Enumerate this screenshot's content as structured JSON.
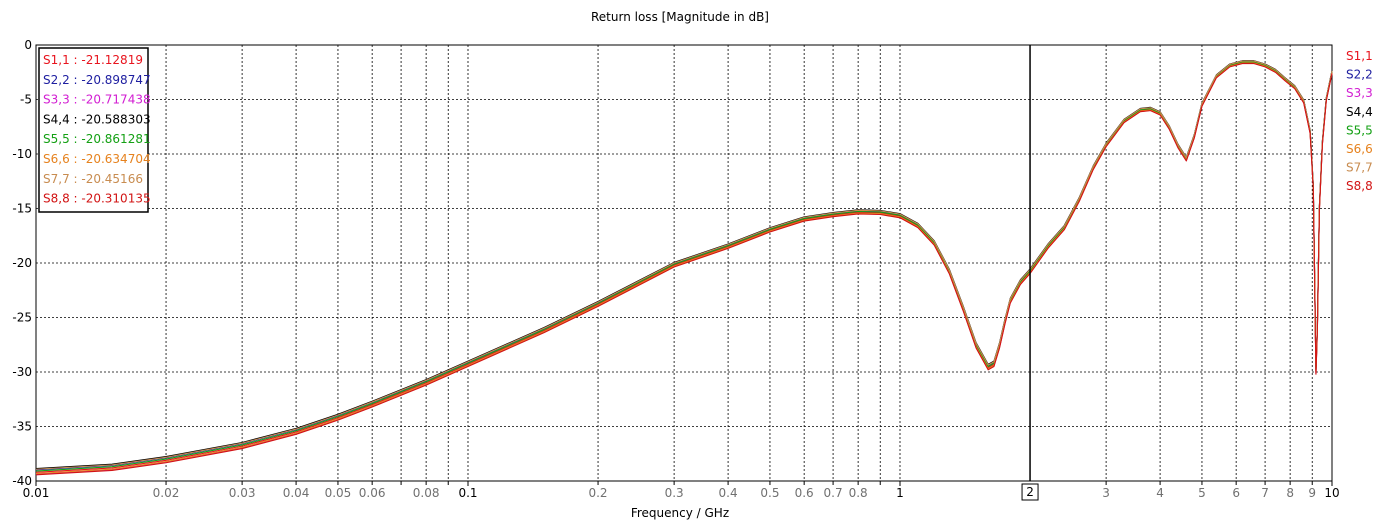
{
  "chart_data": {
    "type": "line",
    "title": "Return loss [Magnitude in dB]",
    "xlabel": "Frequency / GHz",
    "ylabel": "",
    "xscale": "log",
    "xlim": [
      0.01,
      10
    ],
    "ylim": [
      -40,
      0
    ],
    "grid": true,
    "x_ticks_major": [
      {
        "value": 0.01,
        "label": "0.01"
      },
      {
        "value": 0.1,
        "label": "0.1"
      },
      {
        "value": 1,
        "label": "1"
      },
      {
        "value": 10,
        "label": "10"
      }
    ],
    "x_ticks_minor": [
      {
        "value": 0.02,
        "label": "0.02"
      },
      {
        "value": 0.03,
        "label": "0.03"
      },
      {
        "value": 0.04,
        "label": "0.04"
      },
      {
        "value": 0.05,
        "label": "0.05"
      },
      {
        "value": 0.06,
        "label": "0.06"
      },
      {
        "value": 0.07,
        "label": ""
      },
      {
        "value": 0.08,
        "label": "0.08"
      },
      {
        "value": 0.09,
        "label": ""
      },
      {
        "value": 0.2,
        "label": "0.2"
      },
      {
        "value": 0.3,
        "label": "0.3"
      },
      {
        "value": 0.4,
        "label": "0.4"
      },
      {
        "value": 0.5,
        "label": "0.5"
      },
      {
        "value": 0.6,
        "label": "0.6"
      },
      {
        "value": 0.7,
        "label": "0.7"
      },
      {
        "value": 0.8,
        "label": "0.8"
      },
      {
        "value": 0.9,
        "label": ""
      },
      {
        "value": 3,
        "label": "3"
      },
      {
        "value": 4,
        "label": "4"
      },
      {
        "value": 5,
        "label": "5"
      },
      {
        "value": 6,
        "label": "6"
      },
      {
        "value": 7,
        "label": "7"
      },
      {
        "value": 8,
        "label": "8"
      },
      {
        "value": 9,
        "label": "9"
      }
    ],
    "y_ticks": [
      {
        "value": 0,
        "label": "0"
      },
      {
        "value": -5,
        "label": "-5"
      },
      {
        "value": -10,
        "label": "-10"
      },
      {
        "value": -15,
        "label": "-15"
      },
      {
        "value": -20,
        "label": "-20"
      },
      {
        "value": -25,
        "label": "-25"
      },
      {
        "value": -30,
        "label": "-30"
      },
      {
        "value": -35,
        "label": "-35"
      },
      {
        "value": -40,
        "label": "-40"
      }
    ],
    "marker": {
      "x": 2,
      "label": "2"
    },
    "legend_position": "top-left",
    "legend": [
      {
        "text": "S1,1 : -21.12819",
        "color": "#e8141e"
      },
      {
        "text": "S2,2 : -20.898747",
        "color": "#1e1ea0"
      },
      {
        "text": "S3,3 : -20.717438",
        "color": "#d21ed2"
      },
      {
        "text": "S4,4 : -20.588303",
        "color": "#000000"
      },
      {
        "text": "S5,5 : -20.861281",
        "color": "#14a014"
      },
      {
        "text": "S6,6 : -20.634704",
        "color": "#e6821e"
      },
      {
        "text": "S7,7 : -20.45166",
        "color": "#c88c50"
      },
      {
        "text": "S8,8 : -20.310135",
        "color": "#d21414"
      }
    ],
    "series_end_labels": [
      {
        "name": "S1,1",
        "color": "#e8141e"
      },
      {
        "name": "S2,2",
        "color": "#1e1ea0"
      },
      {
        "name": "S3,3",
        "color": "#d21ed2"
      },
      {
        "name": "S4,4",
        "color": "#000000"
      },
      {
        "name": "S5,5",
        "color": "#14a014"
      },
      {
        "name": "S6,6",
        "color": "#e6821e"
      },
      {
        "name": "S7,7",
        "color": "#c88c50"
      },
      {
        "name": "S8,8",
        "color": "#d21414"
      }
    ],
    "base_curve": {
      "x": [
        0.01,
        0.015,
        0.02,
        0.03,
        0.04,
        0.05,
        0.06,
        0.08,
        0.1,
        0.15,
        0.2,
        0.3,
        0.4,
        0.5,
        0.6,
        0.7,
        0.8,
        0.9,
        1.0,
        1.1,
        1.2,
        1.3,
        1.4,
        1.5,
        1.6,
        1.65,
        1.7,
        1.75,
        1.8,
        1.9,
        2.0,
        2.2,
        2.4,
        2.6,
        2.8,
        3.0,
        3.3,
        3.6,
        3.8,
        4.0,
        4.2,
        4.4,
        4.6,
        4.8,
        5.0,
        5.4,
        5.8,
        6.2,
        6.6,
        7.0,
        7.4,
        7.8,
        8.2,
        8.6,
        8.9,
        9.05,
        9.12,
        9.18,
        9.25,
        9.35,
        9.5,
        9.7,
        10.0
      ],
      "y": [
        -39.2,
        -38.8,
        -38.1,
        -36.8,
        -35.5,
        -34.2,
        -33.0,
        -31.0,
        -29.3,
        -26.2,
        -23.8,
        -20.2,
        -18.5,
        -17.0,
        -16.0,
        -15.6,
        -15.35,
        -15.4,
        -15.7,
        -16.6,
        -18.2,
        -20.8,
        -24.2,
        -27.6,
        -29.6,
        -29.3,
        -27.6,
        -25.4,
        -23.5,
        -21.8,
        -20.8,
        -18.5,
        -16.8,
        -14.2,
        -11.3,
        -9.2,
        -7.0,
        -6.0,
        -5.9,
        -6.3,
        -7.6,
        -9.3,
        -10.5,
        -8.4,
        -5.5,
        -2.9,
        -1.9,
        -1.6,
        -1.6,
        -1.9,
        -2.4,
        -3.2,
        -3.9,
        -5.2,
        -8.0,
        -13.0,
        -22.0,
        -30.0,
        -26.0,
        -15.0,
        -9.0,
        -5.0,
        -2.5
      ]
    },
    "series_offsets": [
      0.0,
      0.1,
      -0.08,
      0.15,
      0.05,
      -0.05,
      0.12,
      -0.1
    ]
  }
}
